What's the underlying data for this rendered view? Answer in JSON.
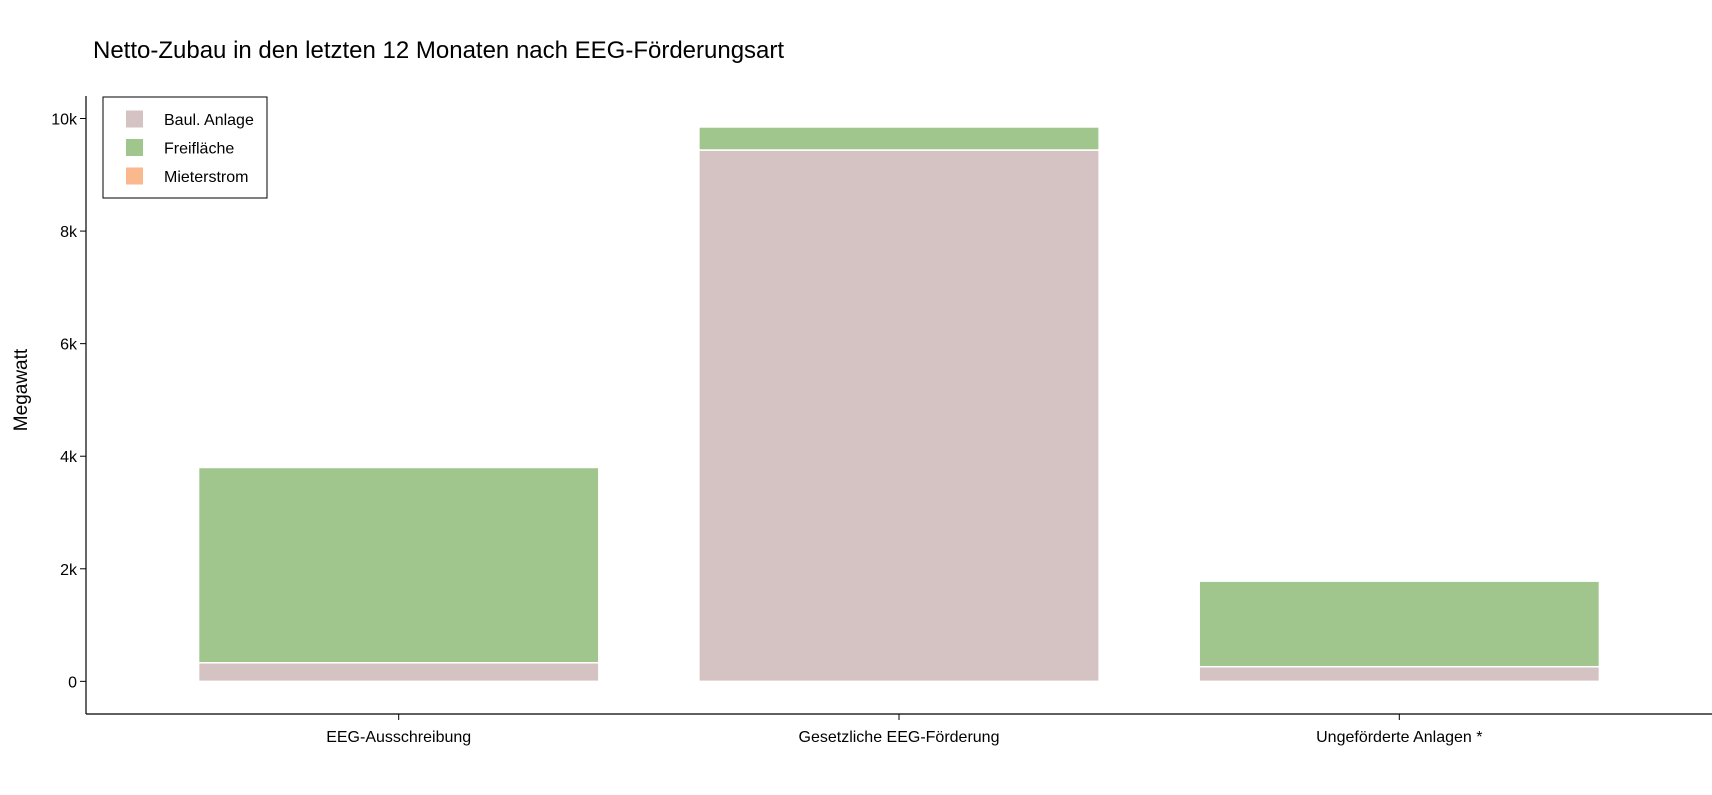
{
  "chart_data": {
    "type": "bar",
    "stacked": true,
    "title": "Netto-Zubau in den letzten 12 Monaten nach EEG-Förderungsart",
    "xlabel": "",
    "ylabel": "Megawatt",
    "ylim": [
      -580,
      10400
    ],
    "yticks": [
      {
        "value": 0,
        "label": "0"
      },
      {
        "value": 2000,
        "label": "2k"
      },
      {
        "value": 4000,
        "label": "4k"
      },
      {
        "value": 6000,
        "label": "6k"
      },
      {
        "value": 8000,
        "label": "8k"
      },
      {
        "value": 10000,
        "label": "10k"
      }
    ],
    "categories": [
      "EEG-Ausschreibung",
      "Gesetzliche EEG-Förderung",
      "Ungeförderte Anlagen *"
    ],
    "series": [
      {
        "name": "Baul. Anlage",
        "color": "#d5c2c2",
        "values": [
          330,
          9440,
          260
        ]
      },
      {
        "name": "Freifläche",
        "color": "#a1c68d",
        "values": [
          3470,
          410,
          1520
        ]
      },
      {
        "name": "Mieterstrom",
        "color": "#f9b98c",
        "values": [
          0,
          0,
          0
        ]
      }
    ],
    "grid": false,
    "legend": "top-left"
  }
}
